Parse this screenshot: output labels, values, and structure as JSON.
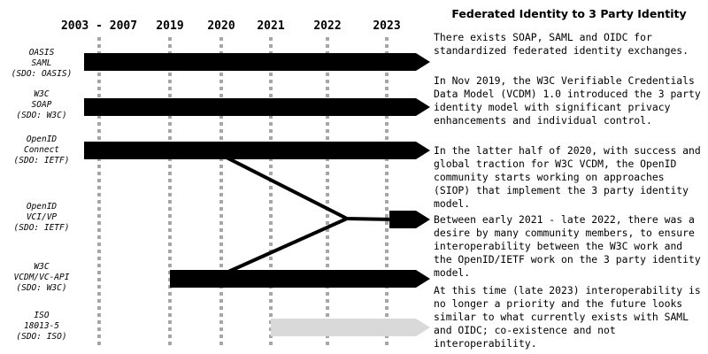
{
  "years": [
    "2003 - 2007",
    "2019",
    "2020",
    "2021",
    "2022",
    "2023"
  ],
  "rows": [
    {
      "lines": [
        "OASIS",
        "SAML",
        "(SDO: OASIS)"
      ]
    },
    {
      "lines": [
        "W3C",
        "SOAP",
        "(SDO: W3C)"
      ]
    },
    {
      "lines": [
        "OpenID",
        "Connect",
        "(SDO: IETF)"
      ]
    },
    {
      "lines": [
        "OpenID",
        "VCI/VP",
        "(SDO: IETF)"
      ]
    },
    {
      "lines": [
        "W3C",
        "VCDM/VC-API",
        "(SDO: W3C)"
      ]
    },
    {
      "lines": [
        "ISO",
        "18013-5",
        "(SDO: ISO)"
      ]
    }
  ],
  "colors": {
    "bar": "#000000",
    "faded_bar": "#d9d9d9",
    "gridline": "#a6a6a6"
  },
  "panel": {
    "title": "Federated Identity to 3 Party Identity",
    "paragraphs": [
      "There exists SOAP, SAML and OIDC for standardized federated identity exchanges.",
      "In Nov 2019, the W3C Verifiable Credentials Data Model (VCDM) 1.0 introduced the 3 party identity model with significant privacy enhancements and individual control.",
      "In the latter half of 2020, with success and global traction for W3C VCDM, the OpenID community starts working on approaches (SIOP) that implement the 3 party identity model.",
      "Between early 2021 - late 2022, there was a desire by many community members, to ensure interoperability between the W3C work and the OpenID/IETF work on the 3 party identity model.",
      "At this time (late 2023) interoperability is no longer a priority and the future looks similar to what currently exists with SAML and OIDC; co-existence and not interoperability."
    ]
  }
}
